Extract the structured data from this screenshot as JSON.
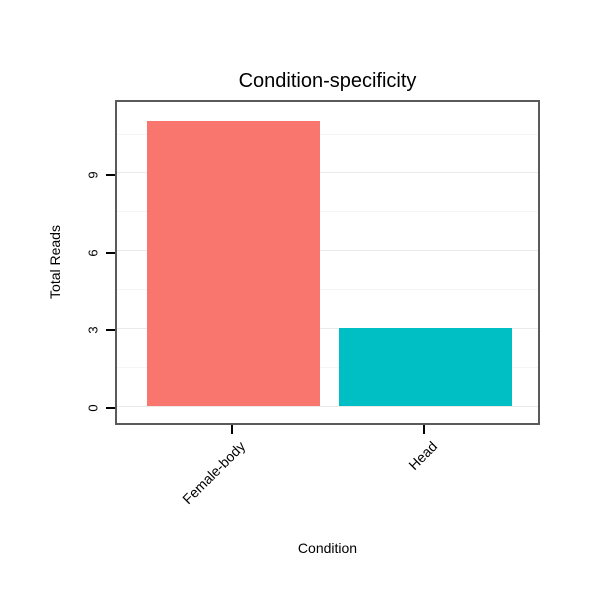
{
  "chart_data": {
    "type": "bar",
    "title": "Condition-specificity",
    "xlabel": "Condition",
    "ylabel": "Total Reads",
    "categories": [
      "Female-body",
      "Head"
    ],
    "values": [
      11,
      3
    ],
    "bar_colors": [
      "#F8766D",
      "#00BFC4"
    ],
    "yticks": [
      0,
      3,
      6,
      9
    ],
    "yticks_minor": [
      1.5,
      4.5,
      7.5,
      10.5
    ],
    "ylim": [
      -0.65,
      11.9
    ],
    "grid": "horizontal major and minor gridlines, faint gray, panel bordered",
    "legend": "none",
    "panel_border_color": "#5a5a5a",
    "tick_color": "#000000",
    "background_color": "#ffffff"
  }
}
